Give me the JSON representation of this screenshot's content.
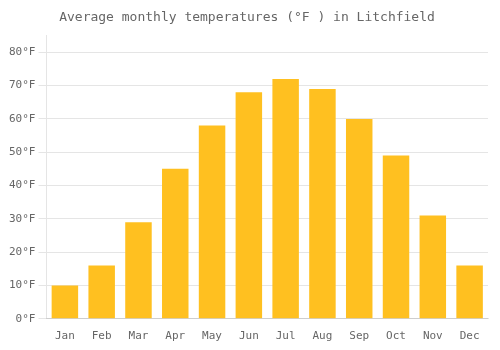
{
  "chart_data": {
    "type": "bar",
    "title": "Average monthly temperatures (°F ) in Litchfield",
    "categories": [
      "Jan",
      "Feb",
      "Mar",
      "Apr",
      "May",
      "Jun",
      "Jul",
      "Aug",
      "Sep",
      "Oct",
      "Nov",
      "Dec"
    ],
    "values": [
      10,
      16,
      29,
      45,
      58,
      68,
      72,
      69,
      60,
      49,
      31,
      16
    ],
    "color": "#FFC020",
    "ylim": [
      0,
      85
    ],
    "yticks": [
      {
        "value": 0,
        "label": "0°F"
      },
      {
        "value": 10,
        "label": "10°F"
      },
      {
        "value": 20,
        "label": "20°F"
      },
      {
        "value": 30,
        "label": "30°F"
      },
      {
        "value": 40,
        "label": "40°F"
      },
      {
        "value": 50,
        "label": "50°F"
      },
      {
        "value": 60,
        "label": "60°F"
      },
      {
        "value": 70,
        "label": "70°F"
      },
      {
        "value": 80,
        "label": "80°F"
      }
    ],
    "grid": true
  }
}
